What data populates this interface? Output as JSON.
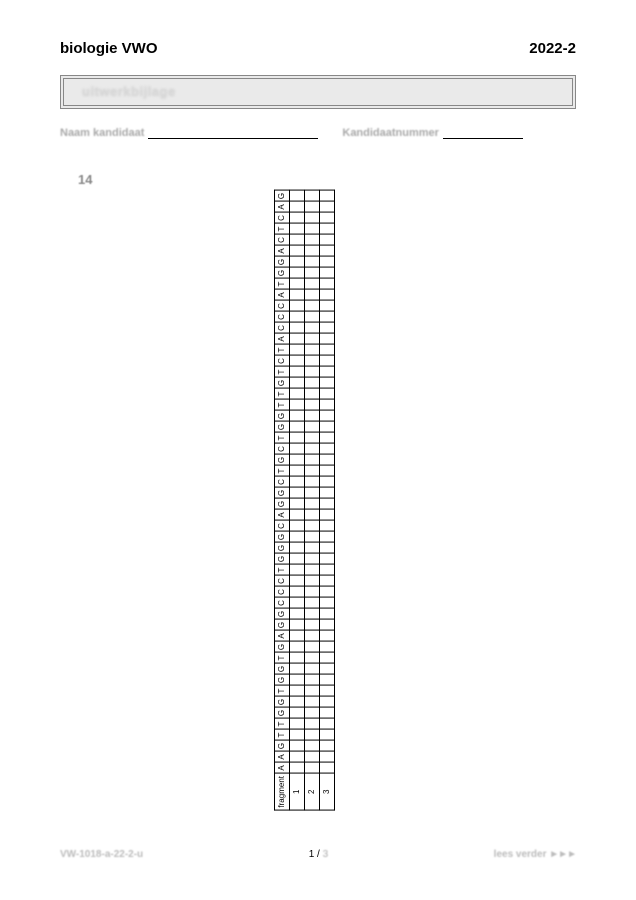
{
  "header": {
    "subject": "biologie VWO",
    "year": "2022-2"
  },
  "title_bar": "uitwerkbijlage",
  "fields": {
    "name_label": "Naam kandidaat",
    "number_label": "Kandidaatnummer"
  },
  "question_number": "14",
  "sequence_table": {
    "row1_label": "fragment",
    "row2_label": "1",
    "row3_label": "2",
    "row4_label": "3",
    "sequence": [
      "A",
      "A",
      "G",
      "T",
      "T",
      "G",
      "G",
      "T",
      "G",
      "G",
      "T",
      "G",
      "A",
      "G",
      "G",
      "C",
      "C",
      "C",
      "T",
      "G",
      "G",
      "G",
      "C",
      "A",
      "G",
      "G",
      "C",
      "T",
      "G",
      "C",
      "T",
      "G",
      "G",
      "T",
      "T",
      "G",
      "T",
      "C",
      "T",
      "A",
      "C",
      "C",
      "C",
      "A",
      "T",
      "G",
      "G",
      "A",
      "C",
      "T",
      "C",
      "A",
      "G"
    ]
  },
  "footer": {
    "left_code": "VW-1018-a-22-2-u",
    "page_current": "1",
    "page_sep": " / ",
    "page_total": "3",
    "right_text": "lees verder",
    "arrows": "►►►"
  },
  "layout": {
    "name_line_width": 170,
    "number_line_width": 80
  }
}
